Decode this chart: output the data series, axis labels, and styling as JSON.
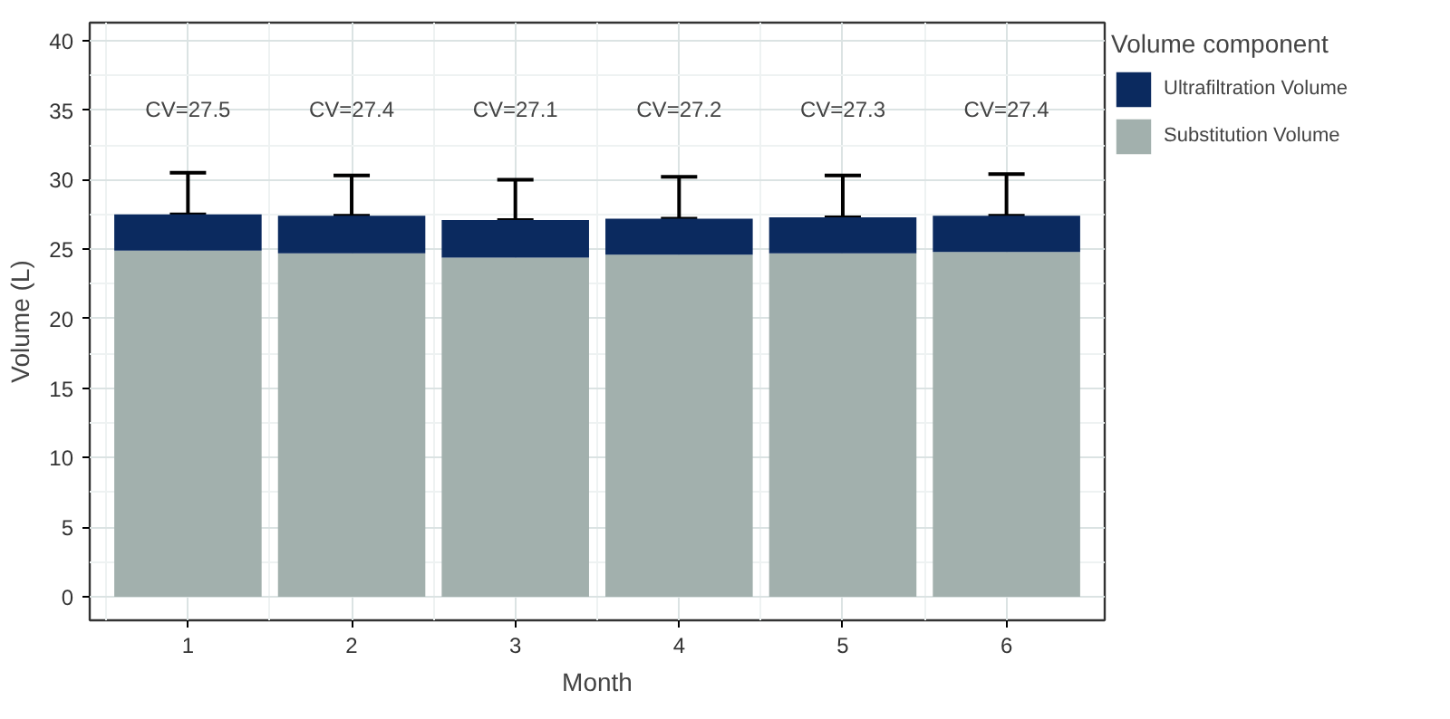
{
  "chart_data": {
    "type": "bar",
    "stacked": true,
    "xlabel": "Month",
    "ylabel": "Volume (L)",
    "legend_title": "Volume component",
    "categories": [
      "1",
      "2",
      "3",
      "4",
      "5",
      "6"
    ],
    "series": [
      {
        "name": "Substitution Volume",
        "color": "#a2b0ad",
        "values": [
          24.9,
          24.7,
          24.4,
          24.6,
          24.7,
          24.8
        ]
      },
      {
        "name": "Ultrafiltration Volume",
        "color": "#0b2a5f",
        "values": [
          2.6,
          2.7,
          2.7,
          2.6,
          2.6,
          2.6
        ],
        "errors": [
          [
            27.5,
            30.5
          ],
          [
            27.4,
            30.3
          ],
          [
            27.1,
            30.0
          ],
          [
            27.2,
            30.2
          ],
          [
            27.3,
            30.3
          ],
          [
            27.4,
            30.4
          ]
        ]
      }
    ],
    "ylim": [
      -1.7,
      41.3
    ],
    "yticks": [
      0,
      5,
      10,
      15,
      20,
      25,
      30,
      35,
      40
    ],
    "grid": true,
    "legend": "right",
    "annotations": [
      "CV=27.5",
      "CV=27.4",
      "CV=27.1",
      "CV=27.2",
      "CV=27.3",
      "CV=27.4"
    ]
  }
}
